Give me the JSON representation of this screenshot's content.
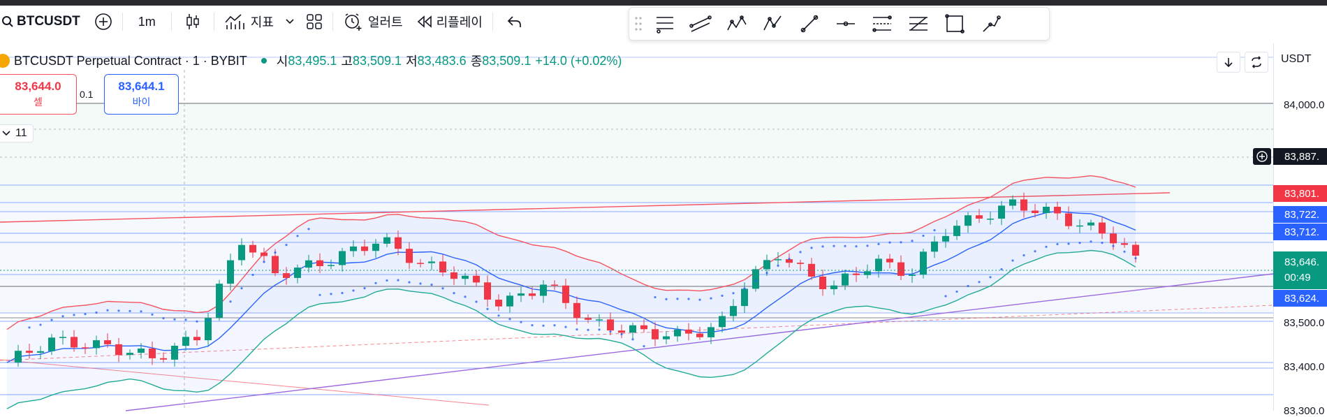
{
  "toolbar": {
    "symbol": "BTCUSDT",
    "interval": "1m",
    "indicators_label": "지표",
    "alert_label": "얼러트",
    "replay_label": "리플레이"
  },
  "drawing_tools": [
    "horizontal-lines-tool-icon",
    "trend-channel-tool-icon",
    "elliott-wave-tool-icon",
    "abcd-pattern-tool-icon",
    "trend-line-tool-icon",
    "horizontal-ray-tool-icon",
    "fib-retracement-tool-icon",
    "gann-fan-tool-icon",
    "rectangle-tool-icon",
    "path-tool-icon"
  ],
  "legend": {
    "title": "BTCUSDT Perpetual Contract · 1 · BYBIT",
    "open_label": "시",
    "open": "83,495.1",
    "high_label": "고",
    "high": "83,509.1",
    "low_label": "저",
    "low": "83,483.6",
    "close_label": "종",
    "close": "83,509.1",
    "change": "+14.0 (+0.02%)"
  },
  "trade": {
    "sell_price": "83,644.0",
    "sell_label": "셀",
    "quantity": "0.1",
    "buy_price": "83,644.1",
    "buy_label": "바이"
  },
  "indicator_toggle": "11",
  "price_axis": {
    "unit": "USDT",
    "ticks": [
      "84,000.0",
      "83,500.0",
      "83,400.0",
      "83,300.0"
    ]
  },
  "price_labels": {
    "crosshair": "83,887.",
    "red": "83,801.",
    "blue1": "83,722.",
    "blue2": "83,712.",
    "current": "83,646.",
    "countdown": "00:49",
    "blue3": "83,624."
  },
  "colors": {
    "up": "#089981",
    "down": "#f23645",
    "blue": "#2962ff",
    "upper_band": "#f7525f",
    "lower_band": "#22ab94",
    "ma": "#2962ff",
    "trend": "#9c6ade",
    "psar": "#2962ff"
  }
}
